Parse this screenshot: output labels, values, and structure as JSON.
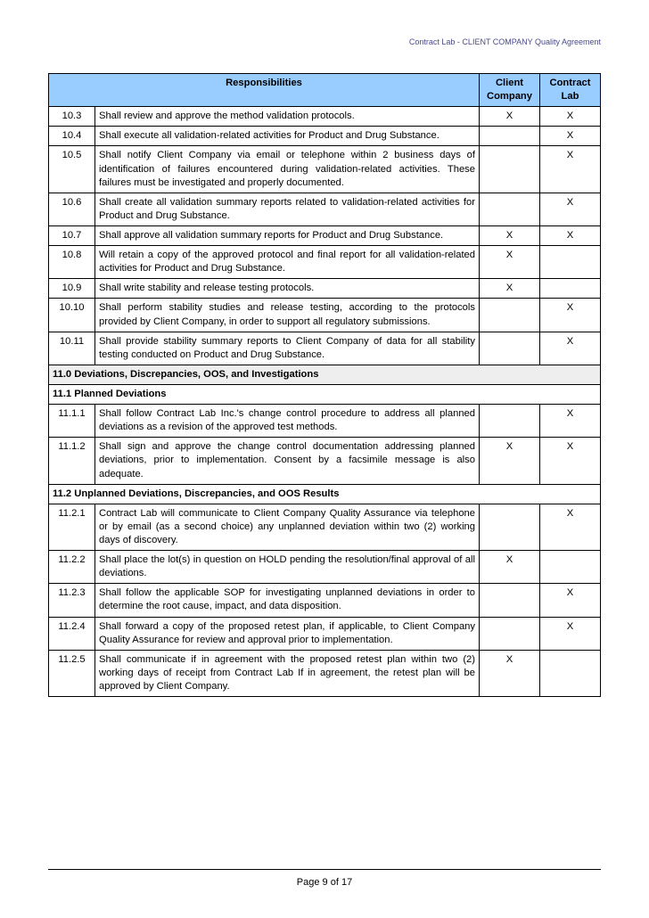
{
  "header": "Contract Lab - CLIENT COMPANY Quality Agreement",
  "footer": "Page 9 of 17",
  "columns": {
    "resp": "Responsibilities",
    "client": "Client Company",
    "lab": "Contract Lab"
  },
  "rows": [
    {
      "type": "data",
      "num": "10.3",
      "desc": "Shall review and approve the method validation protocols.",
      "client": "X",
      "lab": "X"
    },
    {
      "type": "data",
      "num": "10.4",
      "desc": "Shall execute all validation-related activities for Product and Drug Substance.",
      "client": "",
      "lab": "X"
    },
    {
      "type": "data",
      "num": "10.5",
      "desc": "Shall notify Client Company via email or telephone within 2 business days of identification of failures encountered during validation-related activities.  These failures must be investigated and properly documented.",
      "client": "",
      "lab": "X"
    },
    {
      "type": "data",
      "num": "10.6",
      "desc": "Shall create all validation summary reports related to validation-related activities for Product and Drug Substance.",
      "client": "",
      "lab": "X"
    },
    {
      "type": "data",
      "num": "10.7",
      "desc": "Shall approve all validation summary reports for Product and Drug Substance.",
      "client": "X",
      "lab": "X"
    },
    {
      "type": "data",
      "num": "10.8",
      "desc": "Will retain a copy of the approved protocol and final report for all validation-related activities for Product and Drug Substance.",
      "client": "X",
      "lab": ""
    },
    {
      "type": "data",
      "num": "10.9",
      "desc": "Shall write stability and release testing protocols.",
      "client": "X",
      "lab": ""
    },
    {
      "type": "data",
      "num": "10.10",
      "desc": "Shall perform stability studies and release testing, according to the protocols provided by Client Company, in order to support all regulatory submissions.",
      "client": "",
      "lab": "X"
    },
    {
      "type": "data",
      "num": "10.11",
      "desc": "Shall provide stability summary reports to Client Company of data for all stability testing conducted on Product and Drug Substance.",
      "client": "",
      "lab": "X"
    },
    {
      "type": "section",
      "text": "11.0  Deviations, Discrepancies, OOS, and Investigations"
    },
    {
      "type": "sub",
      "text": "11.1  Planned Deviations"
    },
    {
      "type": "data",
      "num": "11.1.1",
      "desc": "Shall follow Contract Lab Inc.'s change control procedure to address all planned deviations as a revision of the approved test methods.",
      "client": "",
      "lab": "X"
    },
    {
      "type": "data",
      "num": "11.1.2",
      "desc": "Shall sign and approve the change control documentation addressing planned deviations, prior to implementation. Consent by a facsimile message is also adequate.",
      "client": "X",
      "lab": "X"
    },
    {
      "type": "sub",
      "text": "11.2  Unplanned Deviations, Discrepancies, and OOS Results"
    },
    {
      "type": "data",
      "num": "11.2.1",
      "desc": "Contract Lab will communicate to Client Company Quality Assurance via telephone or by email (as a second choice) any unplanned deviation within two (2) working days of discovery.",
      "client": "",
      "lab": "X"
    },
    {
      "type": "data",
      "num": "11.2.2",
      "desc": "Shall place the lot(s) in question on HOLD pending the resolution/final approval of all deviations.",
      "client": "X",
      "lab": ""
    },
    {
      "type": "data",
      "num": "11.2.3",
      "desc": "Shall follow the applicable SOP for investigating unplanned deviations in order to determine the root cause, impact, and data disposition.",
      "client": "",
      "lab": "X"
    },
    {
      "type": "data",
      "num": "11.2.4",
      "desc": "Shall forward a copy of the proposed retest plan, if applicable, to Client Company Quality Assurance for review and approval prior to implementation.",
      "client": "",
      "lab": "X"
    },
    {
      "type": "data",
      "num": "11.2.5",
      "desc": "Shall communicate if in agreement with the proposed retest plan within two (2) working days of receipt from Contract Lab  If in agreement, the retest plan will be approved by Client Company.",
      "client": "X",
      "lab": ""
    }
  ],
  "styling": {
    "header_bg": "#99ccff",
    "section_bg": "#eeeeee",
    "border_color": "#000000",
    "font_size_pt": 11.2,
    "header_font_color": "#4a4a8a"
  }
}
